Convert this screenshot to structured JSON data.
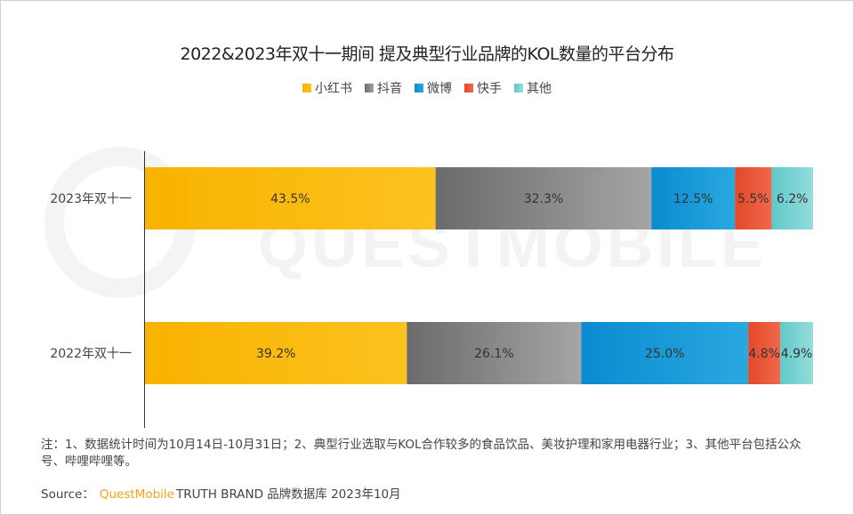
{
  "chart_data": {
    "type": "bar",
    "orientation": "horizontal",
    "stacked": true,
    "percent": true,
    "title": "2022&2023年双十一期间 提及典型行业品牌的KOL数量的平台分布",
    "categories": [
      "2023年双十一",
      "2022年双十一"
    ],
    "series": [
      {
        "name": "小红书",
        "values": [
          43.5,
          39.2
        ],
        "color": "#f9b300",
        "color2": "#fcc21f"
      },
      {
        "name": "抖音",
        "values": [
          32.3,
          26.1
        ],
        "color": "#6b6b6b",
        "color2": "#a5a5a5"
      },
      {
        "name": "微博",
        "values": [
          12.5,
          25.0
        ],
        "color": "#0b8bd0",
        "color2": "#2aa8e0"
      },
      {
        "name": "快手",
        "values": [
          5.5,
          4.8
        ],
        "color": "#e4482a",
        "color2": "#f0684a"
      },
      {
        "name": "其他",
        "values": [
          6.2,
          4.9
        ],
        "color": "#5ec9c9",
        "color2": "#97dcdc"
      }
    ],
    "labels": [
      [
        "43.5%",
        "32.3%",
        "12.5%",
        "5.5%",
        "6.2%"
      ],
      [
        "39.2%",
        "26.1%",
        "25.0%",
        "4.8%",
        "4.9%"
      ]
    ],
    "xlim": [
      0,
      100
    ],
    "legend": "top-center"
  },
  "note": "注：1、数据统计时间为10月14日-10月31日；2、典型行业选取与KOL合作较多的食品饮品、美妆护理和家用电器行业；3、其他平台包括公众号、哔哩哔哩等。",
  "source": {
    "label": "Source：",
    "brand": "QuestMobile",
    "text": "TRUTH BRAND 品牌数据库 2023年10月"
  },
  "watermark": "QUESTMOBILE"
}
